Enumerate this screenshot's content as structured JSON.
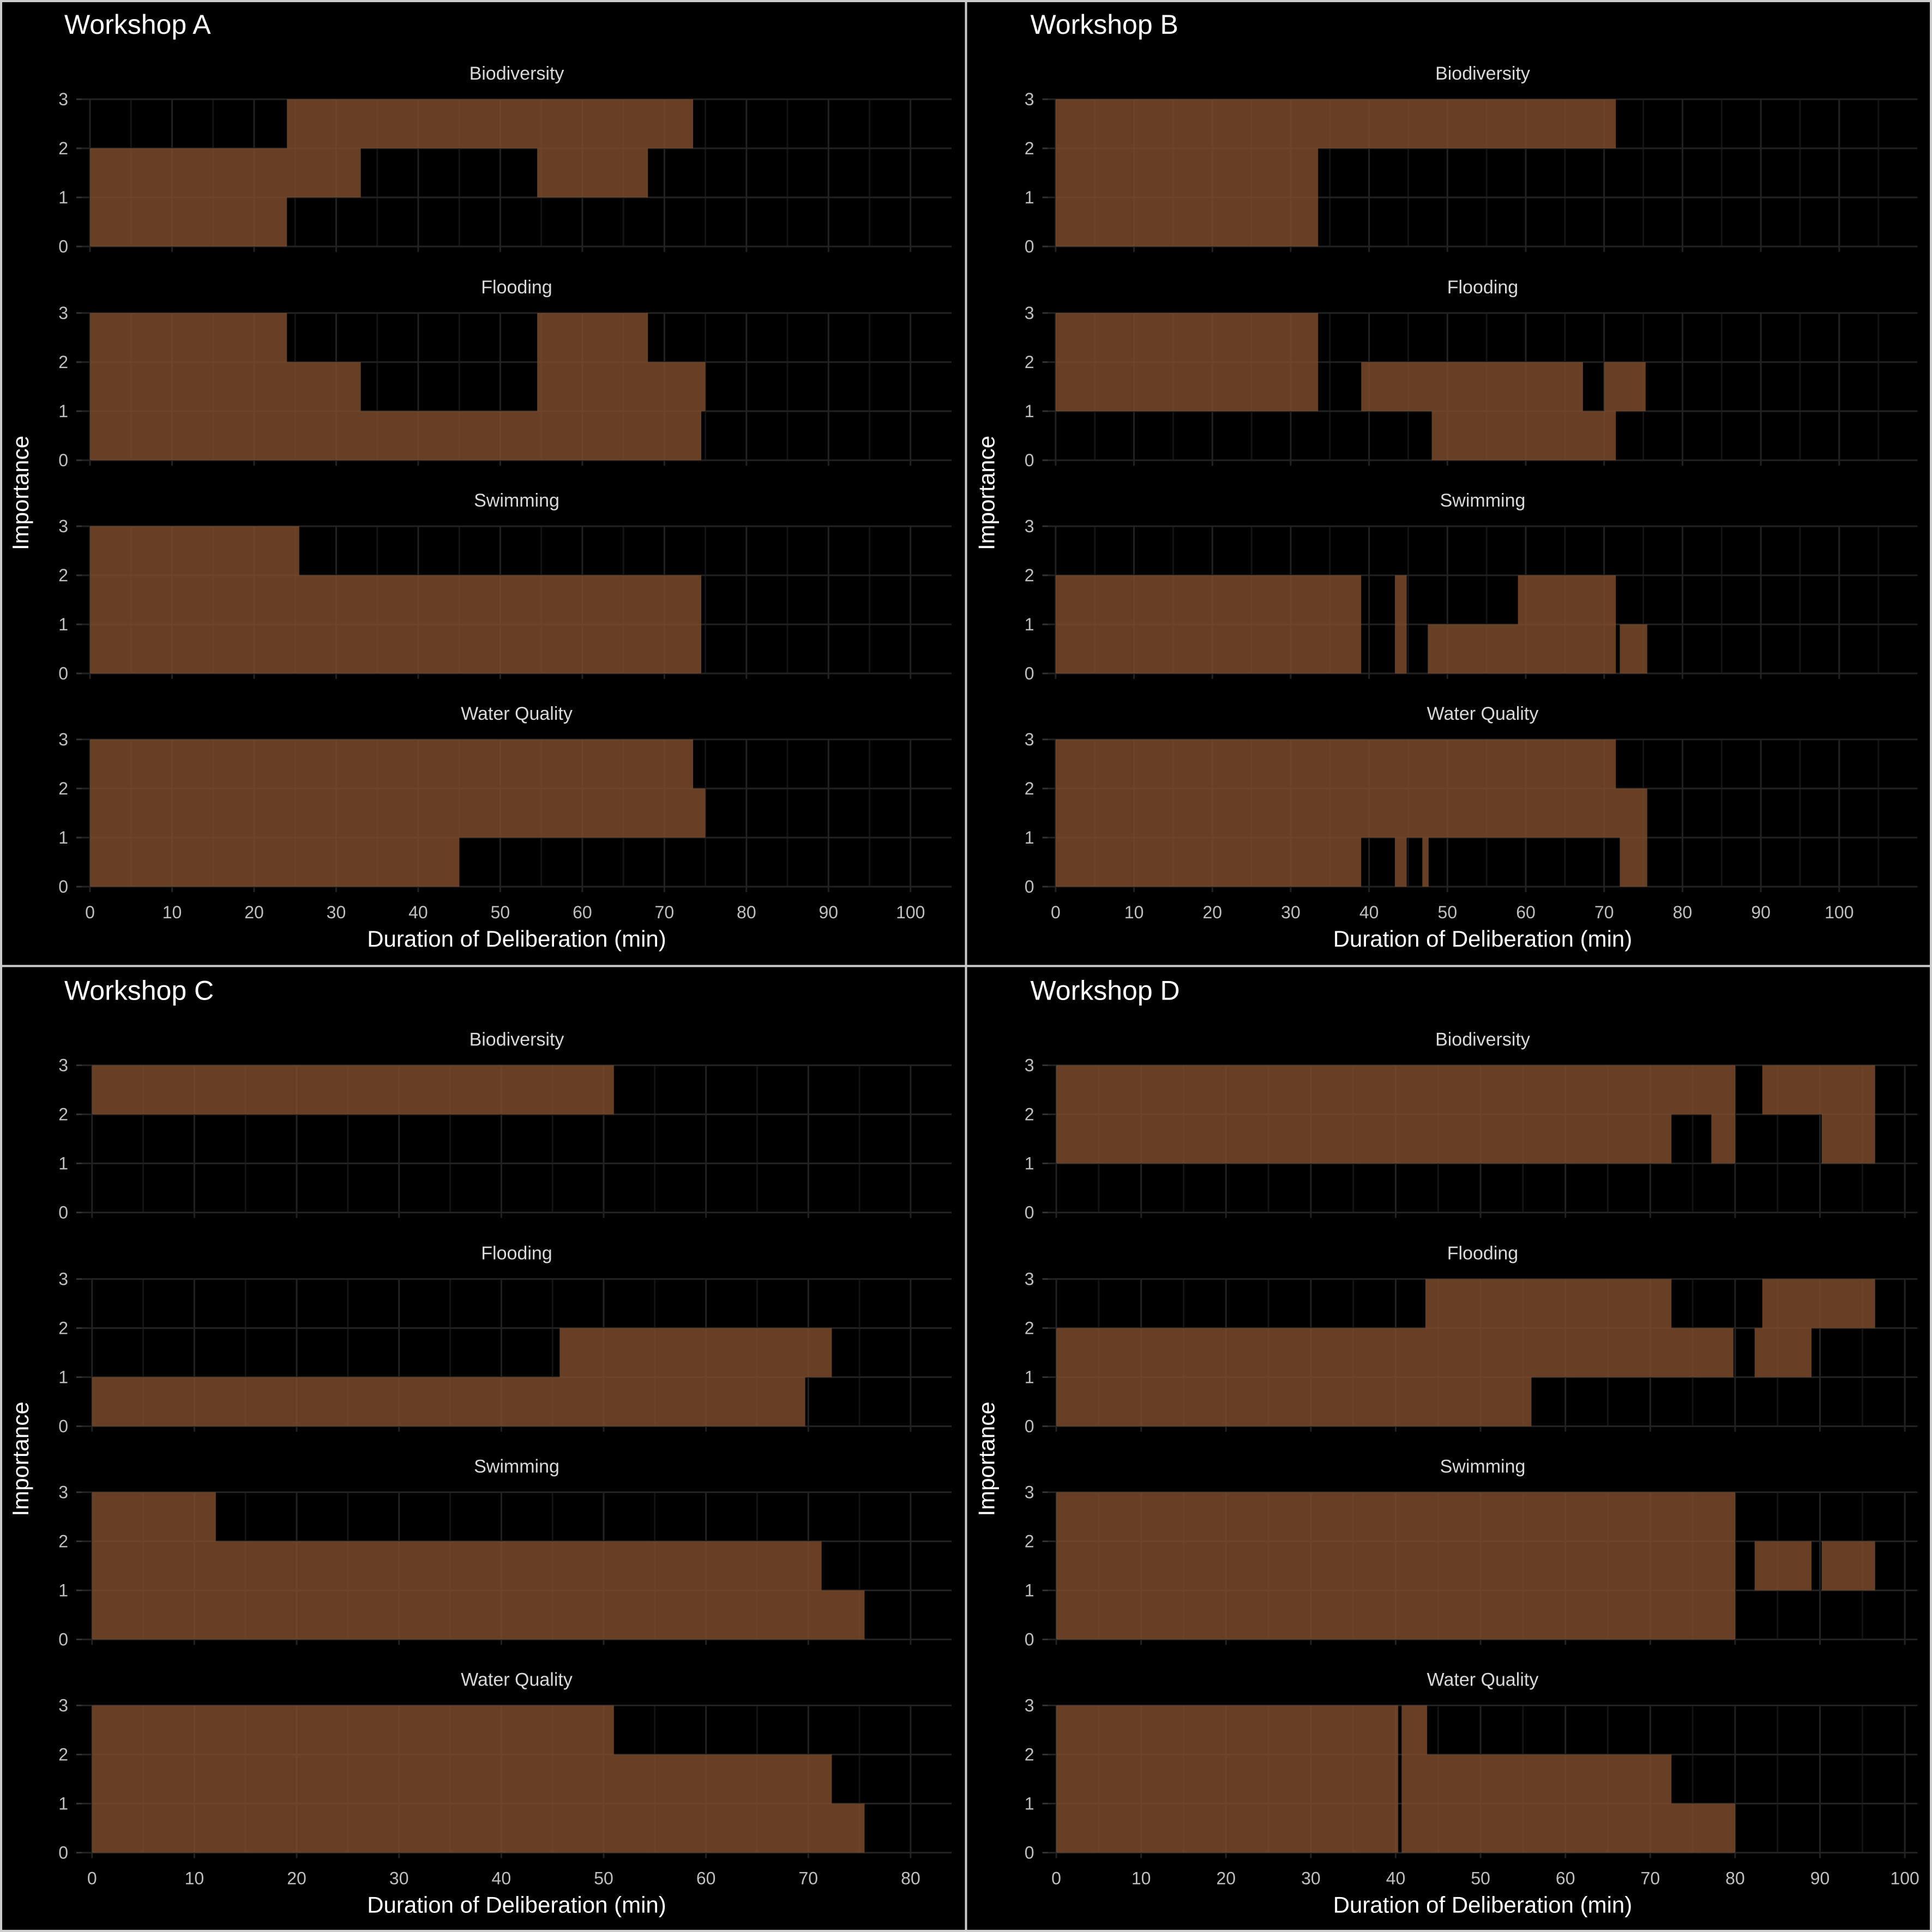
{
  "chart_data": [
    {
      "type": "timeline",
      "title": "Workshop A",
      "xlabel": "Duration of Deliberation (min)",
      "ylabel": "Importance",
      "xlim": [
        -1,
        105
      ],
      "xticks": [
        0,
        10,
        20,
        30,
        40,
        50,
        60,
        70,
        80,
        90,
        100
      ],
      "yticks": [
        0,
        1,
        2,
        3
      ],
      "ylim": [
        0,
        3
      ],
      "facets": [
        {
          "name": "Biodiversity",
          "segments": [
            {
              "x0": 0,
              "x1": 24,
              "y0": 0,
              "y1": 1
            },
            {
              "x0": 0,
              "x1": 33,
              "y0": 1,
              "y1": 2
            },
            {
              "x0": 54.5,
              "x1": 68,
              "y0": 1,
              "y1": 2
            },
            {
              "x0": 24,
              "x1": 73.5,
              "y0": 2,
              "y1": 3
            }
          ]
        },
        {
          "name": "Flooding",
          "segments": [
            {
              "x0": 0,
              "x1": 74.5,
              "y0": 0,
              "y1": 1
            },
            {
              "x0": 0,
              "x1": 33,
              "y0": 1,
              "y1": 2
            },
            {
              "x0": 54.5,
              "x1": 75,
              "y0": 1,
              "y1": 2
            },
            {
              "x0": 0,
              "x1": 24,
              "y0": 2,
              "y1": 3
            },
            {
              "x0": 54.5,
              "x1": 68,
              "y0": 2,
              "y1": 3
            }
          ]
        },
        {
          "name": "Swimming",
          "segments": [
            {
              "x0": 0,
              "x1": 74.5,
              "y0": 0,
              "y1": 2
            },
            {
              "x0": 0,
              "x1": 25.5,
              "y0": 2,
              "y1": 3
            }
          ]
        },
        {
          "name": "Water Quality",
          "segments": [
            {
              "x0": 0,
              "x1": 45,
              "y0": 0,
              "y1": 1
            },
            {
              "x0": 0,
              "x1": 75,
              "y0": 1,
              "y1": 2
            },
            {
              "x0": 0,
              "x1": 73.5,
              "y0": 2,
              "y1": 3
            }
          ]
        }
      ]
    },
    {
      "type": "timeline",
      "title": "Workshop B",
      "xlabel": "Duration of Deliberation (min)",
      "ylabel": "Importance",
      "xlim": [
        -1,
        110
      ],
      "xticks": [
        0,
        10,
        20,
        30,
        40,
        50,
        60,
        70,
        80,
        90,
        100
      ],
      "yticks": [
        0,
        1,
        2,
        3
      ],
      "ylim": [
        0,
        3
      ],
      "facets": [
        {
          "name": "Biodiversity",
          "segments": [
            {
              "x0": 0,
              "x1": 33.5,
              "y0": 0,
              "y1": 2
            },
            {
              "x0": 0,
              "x1": 71.5,
              "y0": 2,
              "y1": 3
            }
          ]
        },
        {
          "name": "Flooding",
          "segments": [
            {
              "x0": 48,
              "x1": 71.5,
              "y0": 0,
              "y1": 1
            },
            {
              "x0": 0,
              "x1": 33.5,
              "y0": 1,
              "y1": 2
            },
            {
              "x0": 39,
              "x1": 67.3,
              "y0": 1,
              "y1": 2
            },
            {
              "x0": 70,
              "x1": 75.3,
              "y0": 1,
              "y1": 2
            },
            {
              "x0": 0,
              "x1": 33.5,
              "y0": 2,
              "y1": 3
            }
          ]
        },
        {
          "name": "Swimming",
          "segments": [
            {
              "x0": 0,
              "x1": 39,
              "y0": 0,
              "y1": 2
            },
            {
              "x0": 43.3,
              "x1": 44.8,
              "y0": 0,
              "y1": 2
            },
            {
              "x0": 47.5,
              "x1": 71.5,
              "y0": 0,
              "y1": 1
            },
            {
              "x0": 59,
              "x1": 71.5,
              "y0": 1,
              "y1": 2
            },
            {
              "x0": 72,
              "x1": 75.5,
              "y0": 0,
              "y1": 1
            }
          ]
        },
        {
          "name": "Water Quality",
          "segments": [
            {
              "x0": 0,
              "x1": 39,
              "y0": 0,
              "y1": 1
            },
            {
              "x0": 43.3,
              "x1": 44.8,
              "y0": 0,
              "y1": 1
            },
            {
              "x0": 46.8,
              "x1": 47.6,
              "y0": 0,
              "y1": 1
            },
            {
              "x0": 72,
              "x1": 75.5,
              "y0": 0,
              "y1": 1
            },
            {
              "x0": 0,
              "x1": 75.5,
              "y0": 1,
              "y1": 2
            },
            {
              "x0": 0,
              "x1": 71.5,
              "y0": 2,
              "y1": 3
            }
          ]
        }
      ]
    },
    {
      "type": "timeline",
      "title": "Workshop C",
      "xlabel": "Duration of Deliberation (min)",
      "ylabel": "Importance",
      "xlim": [
        -1,
        84
      ],
      "xticks": [
        0,
        10,
        20,
        30,
        40,
        50,
        60,
        70,
        80
      ],
      "yticks": [
        0,
        1,
        2,
        3
      ],
      "ylim": [
        0,
        3
      ],
      "facets": [
        {
          "name": "Biodiversity",
          "segments": [
            {
              "x0": 0,
              "x1": 51,
              "y0": 2,
              "y1": 3
            }
          ]
        },
        {
          "name": "Flooding",
          "segments": [
            {
              "x0": 0,
              "x1": 69.7,
              "y0": 0,
              "y1": 1
            },
            {
              "x0": 45.7,
              "x1": 72.3,
              "y0": 1,
              "y1": 2
            }
          ]
        },
        {
          "name": "Swimming",
          "segments": [
            {
              "x0": 0,
              "x1": 75.5,
              "y0": 0,
              "y1": 1
            },
            {
              "x0": 0,
              "x1": 71.3,
              "y0": 1,
              "y1": 2
            },
            {
              "x0": 0,
              "x1": 12.1,
              "y0": 2,
              "y1": 3
            }
          ]
        },
        {
          "name": "Water Quality",
          "segments": [
            {
              "x0": 0,
              "x1": 75.5,
              "y0": 0,
              "y1": 1
            },
            {
              "x0": 0,
              "x1": 72.3,
              "y0": 1,
              "y1": 2
            },
            {
              "x0": 0,
              "x1": 51,
              "y0": 2,
              "y1": 3
            }
          ]
        }
      ]
    },
    {
      "type": "timeline",
      "title": "Workshop D",
      "xlabel": "Duration of Deliberation (min)",
      "ylabel": "Importance",
      "xlim": [
        -1,
        101.5
      ],
      "xticks": [
        0,
        10,
        20,
        30,
        40,
        50,
        60,
        70,
        80,
        90,
        100
      ],
      "yticks": [
        0,
        1,
        2,
        3
      ],
      "ylim": [
        0,
        3
      ],
      "facets": [
        {
          "name": "Biodiversity",
          "segments": [
            {
              "x0": 0,
              "x1": 72.5,
              "y0": 1,
              "y1": 2
            },
            {
              "x0": 77.2,
              "x1": 80,
              "y0": 1,
              "y1": 2
            },
            {
              "x0": 90.2,
              "x1": 96.5,
              "y0": 1,
              "y1": 2
            },
            {
              "x0": 0,
              "x1": 80,
              "y0": 2,
              "y1": 3
            },
            {
              "x0": 83.2,
              "x1": 96.5,
              "y0": 2,
              "y1": 3
            }
          ]
        },
        {
          "name": "Flooding",
          "segments": [
            {
              "x0": 0,
              "x1": 56,
              "y0": 0,
              "y1": 1
            },
            {
              "x0": 0,
              "x1": 79.8,
              "y0": 1,
              "y1": 2
            },
            {
              "x0": 82.3,
              "x1": 89,
              "y0": 1,
              "y1": 2
            },
            {
              "x0": 43.5,
              "x1": 72.5,
              "y0": 2,
              "y1": 3
            },
            {
              "x0": 83.2,
              "x1": 96.5,
              "y0": 2,
              "y1": 3
            }
          ]
        },
        {
          "name": "Swimming",
          "segments": [
            {
              "x0": 0,
              "x1": 80,
              "y0": 0,
              "y1": 3
            },
            {
              "x0": 82.3,
              "x1": 89,
              "y0": 1,
              "y1": 2
            },
            {
              "x0": 90.2,
              "x1": 96.5,
              "y0": 1,
              "y1": 2
            }
          ]
        },
        {
          "name": "Water Quality",
          "segments": [
            {
              "x0": 0,
              "x1": 40.3,
              "y0": 0,
              "y1": 3
            },
            {
              "x0": 40.7,
              "x1": 80,
              "y0": 0,
              "y1": 1
            },
            {
              "x0": 40.7,
              "x1": 72.5,
              "y0": 1,
              "y1": 2
            },
            {
              "x0": 40.7,
              "x1": 43.7,
              "y0": 2,
              "y1": 3
            }
          ]
        }
      ]
    }
  ]
}
